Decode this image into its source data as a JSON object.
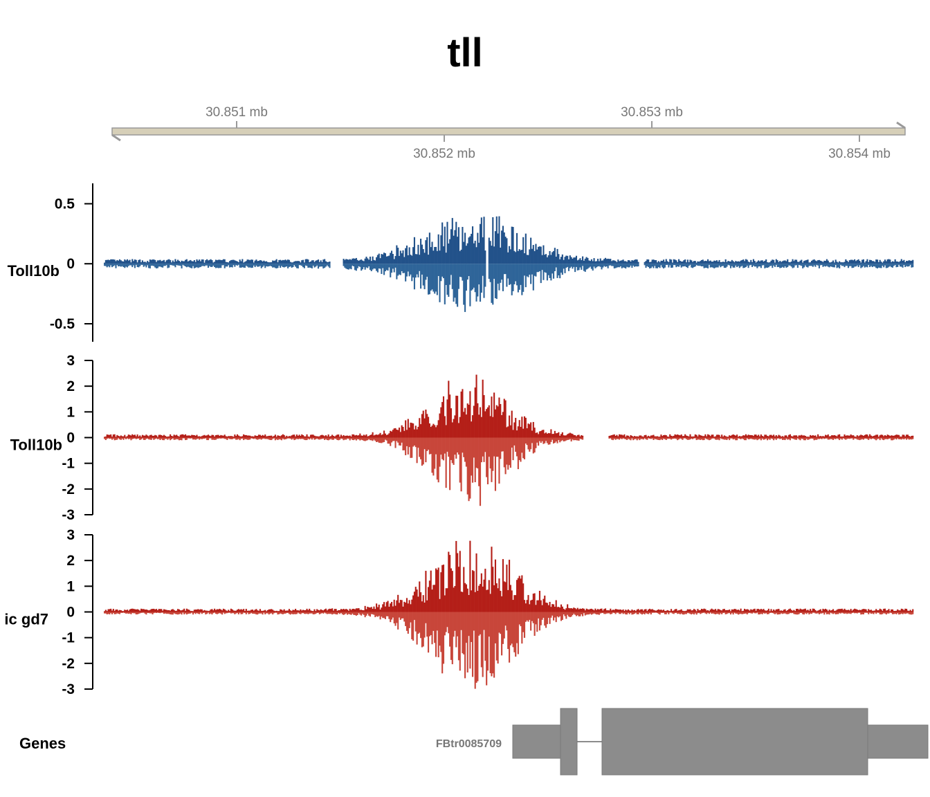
{
  "chart_data": {
    "type": "genome-browser-tracks",
    "title": "tll",
    "genome_axis": {
      "unit": "mb",
      "range": [
        30.85036,
        30.85426
      ],
      "ticks": [
        {
          "value": 30.851,
          "label": "30.851 mb",
          "side": "top"
        },
        {
          "value": 30.852,
          "label": "30.852 mb",
          "side": "bottom"
        },
        {
          "value": 30.853,
          "label": "30.853 mb",
          "side": "top"
        },
        {
          "value": 30.854,
          "label": "30.854 mb",
          "side": "bottom"
        }
      ]
    },
    "tracks": [
      {
        "name": "Toll10b",
        "type": "stranded-bar",
        "color_pos": "#22528a",
        "color_neg": "#2f6599",
        "ylim": [
          -0.65,
          0.67
        ],
        "yticks": [
          {
            "v": 0.5,
            "label": "0.5"
          },
          {
            "v": 0,
            "label": "0"
          },
          {
            "v": -0.5,
            "label": "-0.5"
          }
        ],
        "peak_center": 30.85214,
        "peak_width": 0.00024,
        "peak_pos": 0.42,
        "peak_neg": 0.38,
        "bg_pos": 0.03,
        "bg_neg": 0.03,
        "seed": 7,
        "gaps": [
          [
            30.85145,
            30.85151
          ],
          [
            30.8522,
            30.85221
          ],
          [
            30.85294,
            30.85296
          ]
        ]
      },
      {
        "name": "Toll10b",
        "type": "stranded-bar",
        "color_pos": "#b41f18",
        "color_neg": "#c8463a",
        "ylim": [
          -3.0,
          3.0
        ],
        "yticks": [
          {
            "v": 3,
            "label": "3"
          },
          {
            "v": 2,
            "label": "2"
          },
          {
            "v": 1,
            "label": "1"
          },
          {
            "v": 0,
            "label": "0"
          },
          {
            "v": -1,
            "label": "-1"
          },
          {
            "v": -2,
            "label": "-2"
          },
          {
            "v": -3,
            "label": "-3"
          }
        ],
        "peak_center": 30.85212,
        "peak_width": 0.00018,
        "peak_pos": 2.5,
        "peak_neg": 2.7,
        "bg_pos": 0.1,
        "bg_neg": 0.08,
        "seed": 19,
        "gaps": [
          [
            30.85267,
            30.85279
          ]
        ]
      },
      {
        "name": "ic gd7",
        "type": "stranded-bar",
        "color_pos": "#b41f18",
        "color_neg": "#c8463a",
        "ylim": [
          -3.0,
          3.0
        ],
        "yticks": [
          {
            "v": 3,
            "label": "3"
          },
          {
            "v": 2,
            "label": "2"
          },
          {
            "v": 1,
            "label": "1"
          },
          {
            "v": 0,
            "label": "0"
          },
          {
            "v": -1,
            "label": "-1"
          },
          {
            "v": -2,
            "label": "-2"
          },
          {
            "v": -3,
            "label": "-3"
          }
        ],
        "peak_center": 30.85213,
        "peak_width": 0.0002,
        "peak_pos": 3.0,
        "peak_neg": 3.0,
        "bg_pos": 0.1,
        "bg_neg": 0.08,
        "seed": 31,
        "gaps": []
      }
    ],
    "genes": {
      "label": "Genes",
      "color": "#8c8c8c",
      "transcript": "FBtr0085709",
      "start": 30.85233,
      "end": 30.85433,
      "exons": [
        {
          "start": 30.85233,
          "end": 30.85256,
          "type": "utr"
        },
        {
          "start": 30.85256,
          "end": 30.85264,
          "type": "cds"
        },
        {
          "start": 30.85276,
          "end": 30.85404,
          "type": "cds"
        },
        {
          "start": 30.85404,
          "end": 30.85433,
          "type": "utr"
        }
      ]
    }
  }
}
